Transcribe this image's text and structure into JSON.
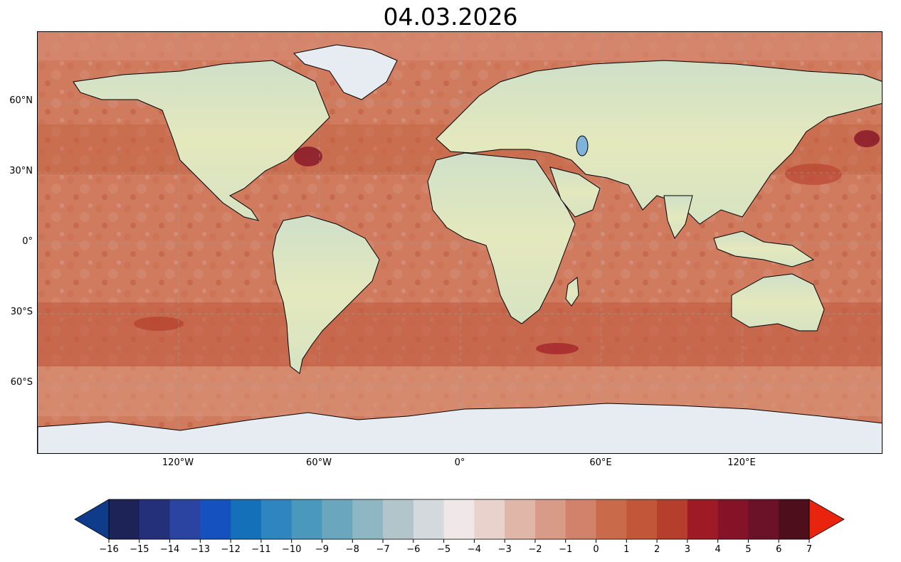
{
  "title": "04.03.2026",
  "map": {
    "type": "global-anomaly-map",
    "projection": "PlateCarree",
    "lat_labels": [
      "60°N",
      "30°N",
      "0°",
      "30°S",
      "60°S"
    ],
    "lat_values": [
      60,
      30,
      0,
      -30,
      -60
    ],
    "lon_labels": [
      "120°W",
      "60°W",
      "0°",
      "60°E",
      "120°E"
    ],
    "lon_values": [
      -120,
      -60,
      0,
      60,
      120
    ],
    "gridlines": true
  },
  "colorbar": {
    "ticks": [
      "−16",
      "−15",
      "−14",
      "−13",
      "−12",
      "−11",
      "−10",
      "−9",
      "−8",
      "−7",
      "−6",
      "−5",
      "−4",
      "−3",
      "−2",
      "−1",
      "0",
      "1",
      "2",
      "3",
      "4",
      "5",
      "6",
      "7"
    ],
    "colors": [
      "#1d2356",
      "#24307a",
      "#2b43a1",
      "#1552c0",
      "#1470b8",
      "#2e85c0",
      "#4a98bb",
      "#6aa7be",
      "#8fb7c3",
      "#b1c5cb",
      "#d3d9dc",
      "#f0e8e8",
      "#e9d2cb",
      "#e0b6a8",
      "#d89b87",
      "#d2826a",
      "#c96a4b",
      "#c15639",
      "#b53e2c",
      "#9e1b26",
      "#851327",
      "#6c1228",
      "#4e0e1c"
    ],
    "extend_low_color": "#0e3c8a",
    "extend_high_color": "#e8240f"
  }
}
